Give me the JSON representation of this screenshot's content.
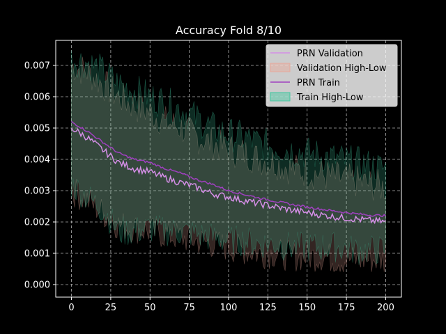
{
  "chart_data": {
    "type": "line",
    "title": "Accuracy Fold 8/10",
    "xlabel": "",
    "ylabel": "",
    "xlim": [
      -10,
      210
    ],
    "ylim": [
      -0.0004,
      0.0078
    ],
    "x_ticks": [
      0,
      25,
      50,
      75,
      100,
      125,
      150,
      175,
      200
    ],
    "y_ticks": [
      0.0,
      0.001,
      0.002,
      0.003,
      0.004,
      0.005,
      0.006,
      0.007
    ],
    "y_tick_labels": [
      "0.000",
      "0.001",
      "0.002",
      "0.003",
      "0.004",
      "0.005",
      "0.006",
      "0.007"
    ],
    "grid": true,
    "legend_position": "top-right",
    "series": [
      {
        "name": "PRN Validation",
        "kind": "line",
        "color": "#d48ee6",
        "x": [
          0,
          10,
          20,
          30,
          40,
          50,
          60,
          70,
          80,
          90,
          100,
          110,
          120,
          130,
          140,
          150,
          160,
          170,
          180,
          190,
          200
        ],
        "values": [
          0.005,
          0.0047,
          0.0043,
          0.0039,
          0.0037,
          0.0036,
          0.0034,
          0.00325,
          0.0031,
          0.0029,
          0.0028,
          0.00268,
          0.00258,
          0.00248,
          0.00238,
          0.0023,
          0.00222,
          0.00215,
          0.0021,
          0.00205,
          0.002
        ]
      },
      {
        "name": "Validation High-Low",
        "kind": "band",
        "color": "#e8a89a",
        "x": [
          0,
          10,
          20,
          30,
          40,
          50,
          60,
          70,
          80,
          90,
          100,
          110,
          120,
          130,
          140,
          150,
          160,
          170,
          180,
          190,
          200
        ],
        "high": [
          0.007,
          0.0068,
          0.0064,
          0.006,
          0.0057,
          0.0055,
          0.0052,
          0.005,
          0.0047,
          0.0045,
          0.0043,
          0.0042,
          0.004,
          0.0039,
          0.0037,
          0.0036,
          0.0035,
          0.0034,
          0.0033,
          0.0032,
          0.0031
        ],
        "low": [
          0.003,
          0.0027,
          0.0023,
          0.0019,
          0.0018,
          0.0017,
          0.0016,
          0.0015,
          0.0014,
          0.0013,
          0.0012,
          0.0011,
          0.001,
          0.001,
          0.0009,
          0.0009,
          0.0009,
          0.0008,
          0.0008,
          0.0008,
          0.0008
        ]
      },
      {
        "name": "PRN Train",
        "kind": "line",
        "color": "#a040c0",
        "x": [
          0,
          10,
          20,
          30,
          40,
          50,
          60,
          70,
          80,
          90,
          100,
          110,
          120,
          130,
          140,
          150,
          160,
          170,
          180,
          190,
          200
        ],
        "values": [
          0.0052,
          0.0049,
          0.00455,
          0.0042,
          0.004,
          0.0039,
          0.0037,
          0.00355,
          0.00335,
          0.0032,
          0.003,
          0.00288,
          0.00276,
          0.00266,
          0.00256,
          0.00248,
          0.0024,
          0.00233,
          0.00227,
          0.00222,
          0.0022
        ]
      },
      {
        "name": "Train High-Low",
        "kind": "band",
        "color": "#40c8a0",
        "x": [
          0,
          10,
          20,
          30,
          40,
          50,
          60,
          70,
          80,
          90,
          100,
          110,
          120,
          130,
          140,
          150,
          160,
          170,
          180,
          190,
          200
        ],
        "high": [
          0.0072,
          0.0071,
          0.0068,
          0.0064,
          0.0062,
          0.006,
          0.0058,
          0.0056,
          0.0053,
          0.005,
          0.0048,
          0.0047,
          0.0045,
          0.0044,
          0.0043,
          0.0042,
          0.0041,
          0.004,
          0.0039,
          0.0038,
          0.0037
        ],
        "low": [
          0.0032,
          0.0028,
          0.0024,
          0.0017,
          0.0017,
          0.0018,
          0.0017,
          0.0017,
          0.0016,
          0.0015,
          0.0014,
          0.0014,
          0.0013,
          0.0013,
          0.0012,
          0.0012,
          0.0012,
          0.0012,
          0.0011,
          0.0011,
          0.0011
        ]
      }
    ]
  }
}
